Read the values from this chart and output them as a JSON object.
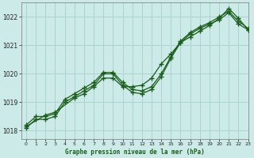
{
  "xlabel": "Graphe pression niveau de la mer (hPa)",
  "bg_color": "#cceae7",
  "grid_color": "#aad4d0",
  "line_color": "#1a5c1a",
  "xlim": [
    -0.5,
    23
  ],
  "ylim": [
    1017.7,
    1022.5
  ],
  "yticks": [
    1018,
    1019,
    1020,
    1021,
    1022
  ],
  "xticks": [
    0,
    1,
    2,
    3,
    4,
    5,
    6,
    7,
    8,
    9,
    10,
    11,
    12,
    13,
    14,
    15,
    16,
    17,
    18,
    19,
    20,
    21,
    22,
    23
  ],
  "series1_x": [
    0,
    1,
    2,
    3,
    4,
    5,
    6,
    7,
    8,
    9,
    10,
    11,
    12,
    13,
    14,
    15,
    16,
    17,
    18,
    19,
    20,
    21,
    22,
    23
  ],
  "series1_y": [
    1018.2,
    1018.5,
    1018.5,
    1018.6,
    1019.1,
    1019.3,
    1019.5,
    1019.7,
    1020.05,
    1020.05,
    1019.7,
    1019.45,
    1019.4,
    1019.55,
    1020.0,
    1020.6,
    1021.15,
    1021.45,
    1021.65,
    1021.8,
    1022.0,
    1022.2,
    1021.85,
    1021.6
  ],
  "series2_x": [
    0,
    1,
    2,
    3,
    4,
    5,
    6,
    7,
    8,
    9,
    10,
    11,
    12,
    13,
    14,
    15,
    16,
    17,
    18,
    19,
    20,
    21,
    22,
    23
  ],
  "series2_y": [
    1018.1,
    1018.4,
    1018.4,
    1018.5,
    1019.0,
    1019.2,
    1019.4,
    1019.6,
    1020.0,
    1020.0,
    1019.6,
    1019.35,
    1019.3,
    1019.45,
    1019.9,
    1020.55,
    1021.1,
    1021.4,
    1021.6,
    1021.75,
    1021.9,
    1022.15,
    1021.75,
    1021.55
  ],
  "series3_x": [
    0,
    2,
    3,
    5,
    6,
    7,
    8,
    9,
    10,
    11,
    12,
    13,
    14,
    15,
    16,
    17,
    18,
    19,
    20,
    21,
    22,
    23
  ],
  "series3_y": [
    1018.15,
    1018.55,
    1018.65,
    1019.15,
    1019.3,
    1019.55,
    1019.85,
    1019.85,
    1019.55,
    1019.55,
    1019.6,
    1019.85,
    1020.35,
    1020.7,
    1021.1,
    1021.3,
    1021.5,
    1021.7,
    1021.95,
    1022.3,
    1021.95,
    1021.55
  ]
}
